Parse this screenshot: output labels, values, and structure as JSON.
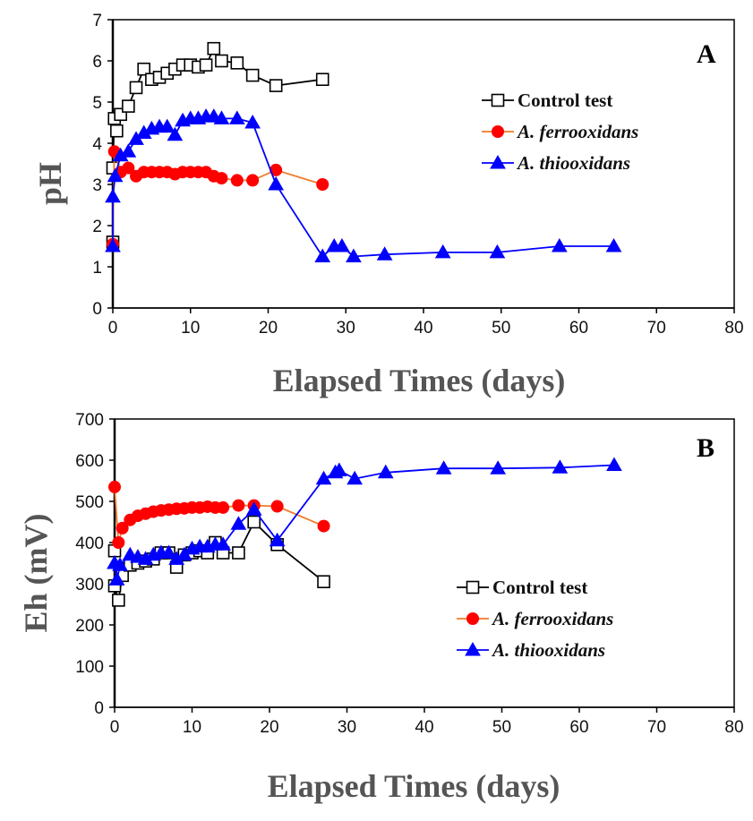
{
  "chart_data": [
    {
      "type": "line",
      "panel_label": "A",
      "xlabel": "Elapsed Times (days)",
      "ylabel": "pH",
      "xlim": [
        0,
        80
      ],
      "ylim": [
        0,
        7
      ],
      "xticks": [
        0,
        10,
        20,
        30,
        40,
        50,
        60,
        70,
        80
      ],
      "yticks": [
        0,
        1,
        2,
        3,
        4,
        5,
        6,
        7
      ],
      "grid": false,
      "legend_position": "top-right",
      "series": [
        {
          "name": "Control test",
          "italic": false,
          "line_color": "#000000",
          "marker": "square-open",
          "marker_color": "#000000",
          "points": [
            [
              0,
              1.6
            ],
            [
              0,
              3.4
            ],
            [
              0.2,
              4.6
            ],
            [
              0.5,
              4.3
            ],
            [
              1,
              4.7
            ],
            [
              2,
              4.9
            ],
            [
              3,
              5.35
            ],
            [
              4,
              5.8
            ],
            [
              5,
              5.55
            ],
            [
              6,
              5.6
            ],
            [
              7,
              5.7
            ],
            [
              8,
              5.8
            ],
            [
              9,
              5.9
            ],
            [
              10,
              5.9
            ],
            [
              11,
              5.85
            ],
            [
              12,
              5.9
            ],
            [
              13,
              6.3
            ],
            [
              14,
              6.0
            ],
            [
              16,
              5.95
            ],
            [
              18,
              5.65
            ],
            [
              21,
              5.4
            ],
            [
              27,
              5.55
            ]
          ]
        },
        {
          "name": "A. ferrooxidans",
          "italic": true,
          "line_color": "#f07a2a",
          "marker": "circle",
          "marker_color": "#ff0000",
          "points": [
            [
              0,
              1.55
            ],
            [
              0.2,
              3.8
            ],
            [
              1,
              3.3
            ],
            [
              2,
              3.4
            ],
            [
              3,
              3.2
            ],
            [
              4,
              3.3
            ],
            [
              5,
              3.3
            ],
            [
              6,
              3.3
            ],
            [
              7,
              3.3
            ],
            [
              8,
              3.25
            ],
            [
              9,
              3.3
            ],
            [
              10,
              3.3
            ],
            [
              11,
              3.3
            ],
            [
              12,
              3.3
            ],
            [
              13,
              3.2
            ],
            [
              14,
              3.15
            ],
            [
              16,
              3.1
            ],
            [
              18,
              3.1
            ],
            [
              21,
              3.35
            ],
            [
              27,
              3.0
            ]
          ]
        },
        {
          "name": "A. thiooxidans",
          "italic": true,
          "line_color": "#0000ff",
          "marker": "triangle",
          "marker_color": "#0000ff",
          "points": [
            [
              0,
              1.5
            ],
            [
              0,
              2.7
            ],
            [
              0.3,
              3.2
            ],
            [
              1,
              3.7
            ],
            [
              2,
              3.8
            ],
            [
              3,
              4.1
            ],
            [
              4,
              4.25
            ],
            [
              5,
              4.35
            ],
            [
              6,
              4.4
            ],
            [
              7,
              4.4
            ],
            [
              8,
              4.2
            ],
            [
              9,
              4.55
            ],
            [
              10,
              4.6
            ],
            [
              11,
              4.6
            ],
            [
              12,
              4.65
            ],
            [
              13,
              4.65
            ],
            [
              14,
              4.6
            ],
            [
              16,
              4.6
            ],
            [
              18,
              4.5
            ],
            [
              21,
              3.0
            ],
            [
              27,
              1.25
            ],
            [
              28.5,
              1.5
            ],
            [
              29.5,
              1.5
            ],
            [
              31,
              1.25
            ],
            [
              35,
              1.3
            ],
            [
              42.5,
              1.35
            ],
            [
              49.5,
              1.35
            ],
            [
              57.5,
              1.5
            ],
            [
              64.5,
              1.5
            ]
          ]
        }
      ]
    },
    {
      "type": "line",
      "panel_label": "B",
      "xlabel": "Elapsed Times (days)",
      "ylabel": "Eh (mV)",
      "xlim": [
        0,
        80
      ],
      "ylim": [
        0,
        700
      ],
      "xticks": [
        0,
        10,
        20,
        30,
        40,
        50,
        60,
        70,
        80
      ],
      "yticks": [
        0,
        100,
        200,
        300,
        400,
        500,
        600,
        700
      ],
      "grid": false,
      "legend_position": "lower-right",
      "series": [
        {
          "name": "Control test",
          "italic": false,
          "line_color": "#000000",
          "marker": "square-open",
          "marker_color": "#000000",
          "points": [
            [
              0,
              380
            ],
            [
              0,
              295
            ],
            [
              0.5,
              260
            ],
            [
              1,
              320
            ],
            [
              2,
              345
            ],
            [
              3,
              350
            ],
            [
              4,
              355
            ],
            [
              5,
              360
            ],
            [
              6,
              375
            ],
            [
              7,
              375
            ],
            [
              8,
              340
            ],
            [
              9,
              370
            ],
            [
              10,
              375
            ],
            [
              11,
              380
            ],
            [
              12,
              375
            ],
            [
              13,
              400
            ],
            [
              14,
              375
            ],
            [
              16,
              375
            ],
            [
              18,
              450
            ],
            [
              21,
              395
            ],
            [
              27,
              305
            ]
          ]
        },
        {
          "name": "A. ferrooxidans",
          "italic": true,
          "line_color": "#f07a2a",
          "marker": "circle",
          "marker_color": "#ff0000",
          "points": [
            [
              0,
              535
            ],
            [
              0.5,
              400
            ],
            [
              1,
              435
            ],
            [
              2,
              455
            ],
            [
              3,
              465
            ],
            [
              4,
              470
            ],
            [
              5,
              475
            ],
            [
              6,
              478
            ],
            [
              7,
              480
            ],
            [
              8,
              482
            ],
            [
              9,
              483
            ],
            [
              10,
              485
            ],
            [
              11,
              485
            ],
            [
              12,
              487
            ],
            [
              13,
              485
            ],
            [
              14,
              485
            ],
            [
              16,
              490
            ],
            [
              18,
              490
            ],
            [
              21,
              488
            ],
            [
              27,
              440
            ]
          ]
        },
        {
          "name": "A. thiooxidans",
          "italic": true,
          "line_color": "#0000ff",
          "marker": "triangle",
          "marker_color": "#0000ff",
          "points": [
            [
              0,
              350
            ],
            [
              0.3,
              310
            ],
            [
              0.7,
              345
            ],
            [
              2,
              370
            ],
            [
              3,
              365
            ],
            [
              4,
              360
            ],
            [
              5,
              370
            ],
            [
              6,
              375
            ],
            [
              7,
              375
            ],
            [
              8,
              360
            ],
            [
              9,
              370
            ],
            [
              10,
              385
            ],
            [
              11,
              390
            ],
            [
              12,
              390
            ],
            [
              13,
              395
            ],
            [
              14,
              395
            ],
            [
              16,
              445
            ],
            [
              18,
              480
            ],
            [
              21,
              405
            ],
            [
              27,
              555
            ],
            [
              28.5,
              570
            ],
            [
              29,
              575
            ],
            [
              31,
              555
            ],
            [
              35,
              570
            ],
            [
              42.5,
              580
            ],
            [
              49.5,
              580
            ],
            [
              57.5,
              582
            ],
            [
              64.5,
              588
            ]
          ]
        }
      ]
    }
  ]
}
